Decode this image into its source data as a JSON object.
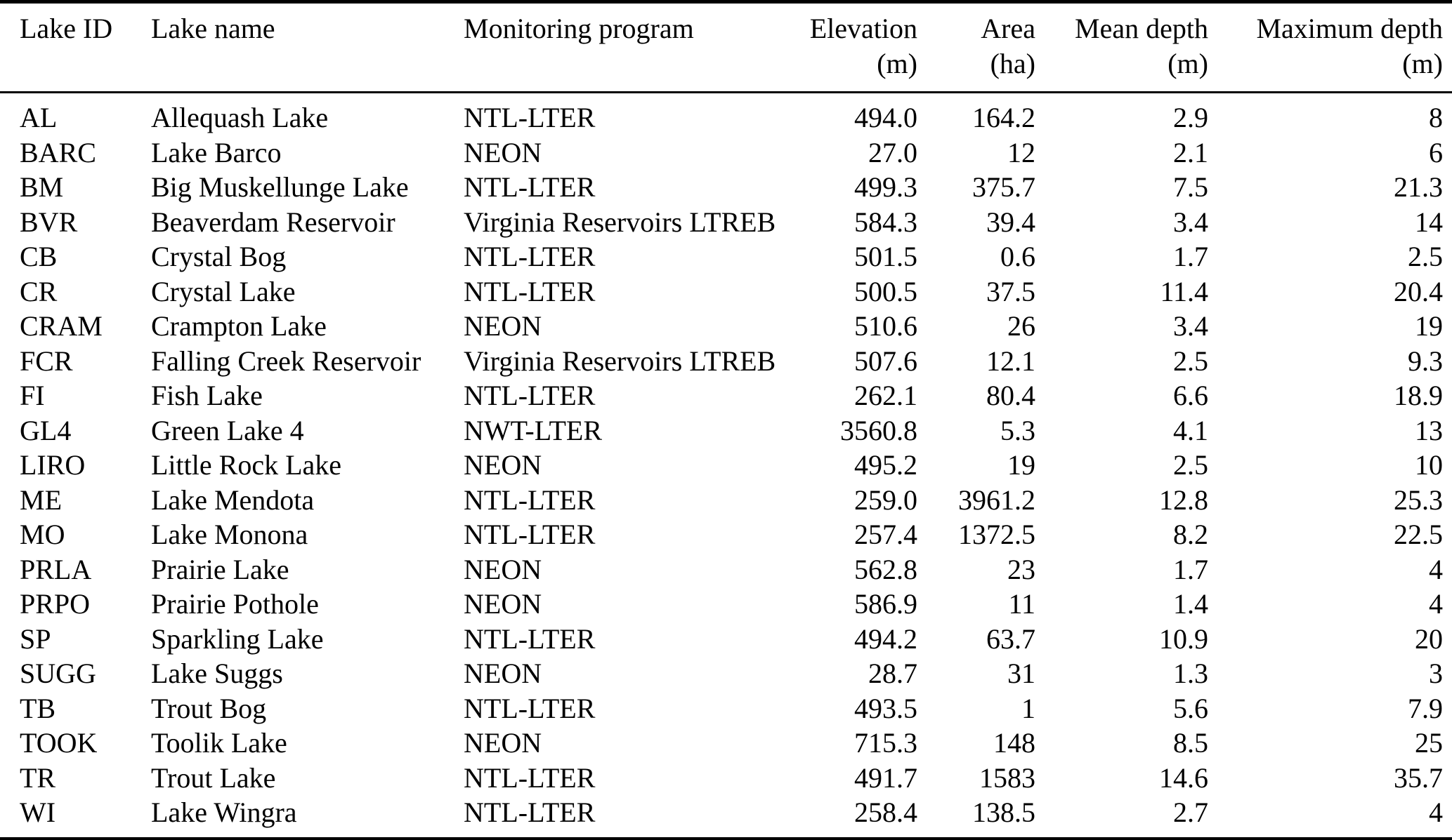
{
  "table": {
    "colors": {
      "text": "#000000",
      "background": "#ffffff",
      "rule": "#000000"
    },
    "columns": [
      {
        "label": "Lake ID",
        "unit": "",
        "align": "left"
      },
      {
        "label": "Lake name",
        "unit": "",
        "align": "left"
      },
      {
        "label": "Monitoring program",
        "unit": "",
        "align": "left"
      },
      {
        "label": "Elevation",
        "unit": "(m)",
        "align": "right"
      },
      {
        "label": "Area",
        "unit": "(ha)",
        "align": "right"
      },
      {
        "label": "Mean depth",
        "unit": "(m)",
        "align": "right"
      },
      {
        "label": "Maximum depth",
        "unit": "(m)",
        "align": "right"
      }
    ],
    "rows": [
      [
        "AL",
        "Allequash Lake",
        "NTL-LTER",
        "494.0",
        "164.2",
        "2.9",
        "8"
      ],
      [
        "BARC",
        "Lake Barco",
        "NEON",
        "27.0",
        "12",
        "2.1",
        "6"
      ],
      [
        "BM",
        "Big Muskellunge Lake",
        "NTL-LTER",
        "499.3",
        "375.7",
        "7.5",
        "21.3"
      ],
      [
        "BVR",
        "Beaverdam Reservoir",
        "Virginia Reservoirs LTREB",
        "584.3",
        "39.4",
        "3.4",
        "14"
      ],
      [
        "CB",
        "Crystal Bog",
        "NTL-LTER",
        "501.5",
        "0.6",
        "1.7",
        "2.5"
      ],
      [
        "CR",
        "Crystal Lake",
        "NTL-LTER",
        "500.5",
        "37.5",
        "11.4",
        "20.4"
      ],
      [
        "CRAM",
        "Crampton Lake",
        "NEON",
        "510.6",
        "26",
        "3.4",
        "19"
      ],
      [
        "FCR",
        "Falling Creek Reservoir",
        "Virginia Reservoirs LTREB",
        "507.6",
        "12.1",
        "2.5",
        "9.3"
      ],
      [
        "FI",
        "Fish Lake",
        "NTL-LTER",
        "262.1",
        "80.4",
        "6.6",
        "18.9"
      ],
      [
        "GL4",
        "Green Lake 4",
        "NWT-LTER",
        "3560.8",
        "5.3",
        "4.1",
        "13"
      ],
      [
        "LIRO",
        "Little Rock Lake",
        "NEON",
        "495.2",
        "19",
        "2.5",
        "10"
      ],
      [
        "ME",
        "Lake Mendota",
        "NTL-LTER",
        "259.0",
        "3961.2",
        "12.8",
        "25.3"
      ],
      [
        "MO",
        "Lake Monona",
        "NTL-LTER",
        "257.4",
        "1372.5",
        "8.2",
        "22.5"
      ],
      [
        "PRLA",
        "Prairie Lake",
        "NEON",
        "562.8",
        "23",
        "1.7",
        "4"
      ],
      [
        "PRPO",
        "Prairie Pothole",
        "NEON",
        "586.9",
        "11",
        "1.4",
        "4"
      ],
      [
        "SP",
        "Sparkling Lake",
        "NTL-LTER",
        "494.2",
        "63.7",
        "10.9",
        "20"
      ],
      [
        "SUGG",
        "Lake Suggs",
        "NEON",
        "28.7",
        "31",
        "1.3",
        "3"
      ],
      [
        "TB",
        "Trout Bog",
        "NTL-LTER",
        "493.5",
        "1",
        "5.6",
        "7.9"
      ],
      [
        "TOOK",
        "Toolik Lake",
        "NEON",
        "715.3",
        "148",
        "8.5",
        "25"
      ],
      [
        "TR",
        "Trout Lake",
        "NTL-LTER",
        "491.7",
        "1583",
        "14.6",
        "35.7"
      ],
      [
        "WI",
        "Lake Wingra",
        "NTL-LTER",
        "258.4",
        "138.5",
        "2.7",
        "4"
      ]
    ]
  }
}
